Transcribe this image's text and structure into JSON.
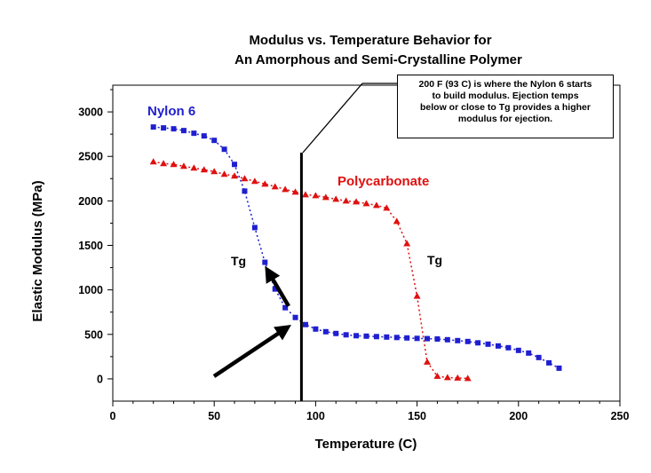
{
  "chart_data": {
    "type": "line",
    "title_lines": [
      "Modulus vs. Temperature Behavior for",
      "An Amorphous and Semi-Crystalline Polymer"
    ],
    "xlabel": "Temperature (C)",
    "ylabel": "Elastic Modulus (MPa)",
    "xlim": [
      0,
      250
    ],
    "ylim": [
      -250,
      3300
    ],
    "x_ticks": [
      0,
      50,
      100,
      150,
      200,
      250
    ],
    "y_ticks": [
      0,
      500,
      1000,
      1500,
      2000,
      2500,
      3000
    ],
    "x_tick_labels": [
      "0",
      "50",
      "100",
      "150",
      "200",
      "250"
    ],
    "y_tick_labels": [
      "0",
      "500",
      "1000",
      "1500",
      "2000",
      "2500",
      "3000"
    ],
    "grid": false,
    "series": [
      {
        "name": "Nylon 6",
        "color": "#1f1fd0",
        "marker": "square",
        "x": [
          20,
          25,
          30,
          35,
          40,
          45,
          50,
          55,
          60,
          65,
          70,
          75,
          80,
          85,
          90,
          95,
          100,
          105,
          110,
          115,
          120,
          125,
          130,
          135,
          140,
          145,
          150,
          155,
          160,
          165,
          170,
          175,
          180,
          185,
          190,
          195,
          200,
          205,
          210,
          215,
          220
        ],
        "y": [
          2830,
          2820,
          2810,
          2790,
          2760,
          2730,
          2680,
          2580,
          2410,
          2110,
          1700,
          1310,
          1010,
          800,
          690,
          610,
          560,
          530,
          510,
          495,
          485,
          480,
          475,
          470,
          465,
          460,
          455,
          452,
          448,
          440,
          430,
          420,
          405,
          390,
          370,
          350,
          320,
          290,
          240,
          180,
          120
        ]
      },
      {
        "name": "Polycarbonate",
        "color": "#e01010",
        "marker": "triangle",
        "x": [
          20,
          25,
          30,
          35,
          40,
          45,
          50,
          55,
          60,
          65,
          70,
          75,
          80,
          85,
          90,
          95,
          100,
          105,
          110,
          115,
          120,
          125,
          130,
          135,
          140,
          145,
          150,
          155,
          160,
          165,
          170,
          175
        ],
        "y": [
          2440,
          2420,
          2410,
          2390,
          2370,
          2350,
          2330,
          2300,
          2280,
          2250,
          2220,
          2190,
          2160,
          2130,
          2100,
          2070,
          2060,
          2040,
          2020,
          2000,
          1990,
          1970,
          1950,
          1920,
          1770,
          1520,
          930,
          190,
          30,
          15,
          10,
          5
        ]
      }
    ],
    "annotations": {
      "vertical_line_x": 93,
      "tg_label": "Tg",
      "note_lines": [
        "200 F (93 C) is where the Nylon 6 starts",
        "to build modulus.  Ejection temps",
        "below or close to Tg provides a higher",
        "modulus for ejection."
      ]
    }
  }
}
